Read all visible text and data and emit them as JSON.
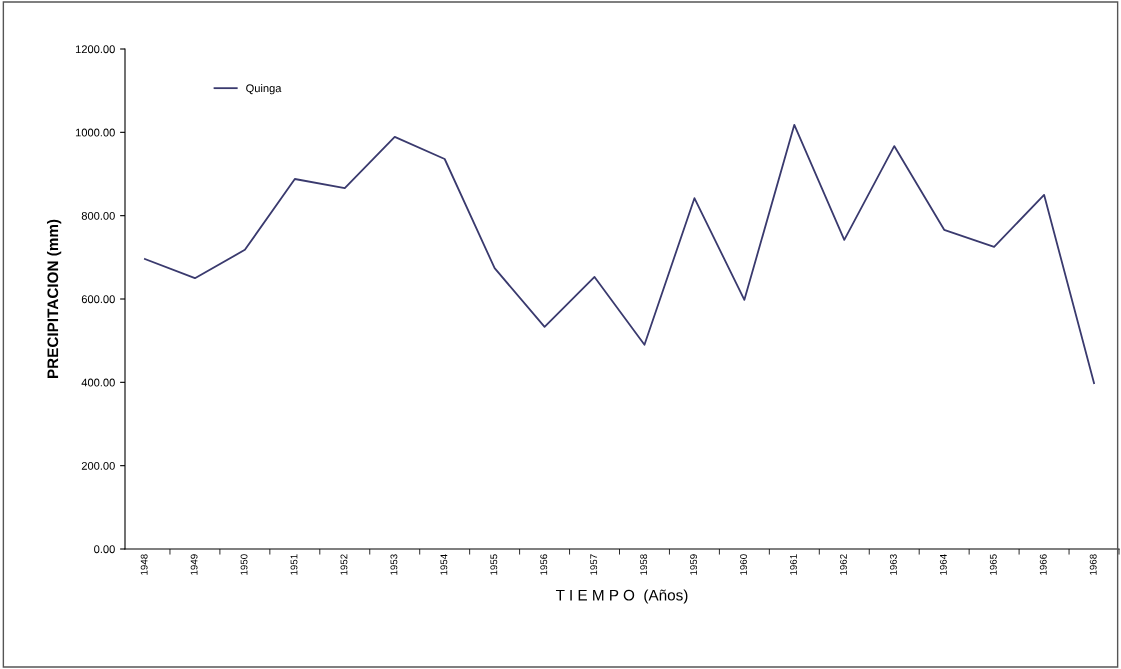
{
  "chart_data": {
    "type": "line",
    "xlabel": "T I E M P O  (Años)",
    "ylabel": "PRECIPITACION (mm)",
    "categories": [
      "1948",
      "1949",
      "1950",
      "1951",
      "1952",
      "1953",
      "1954",
      "1955",
      "1956",
      "1957",
      "1958",
      "1959",
      "1960",
      "1961",
      "1962",
      "1963",
      "1964",
      "1965",
      "1966",
      "1968"
    ],
    "series": [
      {
        "name": "Quinga",
        "color": "#3a3a6e",
        "values": [
          696,
          650,
          718,
          888,
          866,
          989,
          936,
          674,
          533,
          653,
          490,
          842,
          598,
          1018,
          742,
          967,
          766,
          725,
          850,
          398
        ]
      }
    ],
    "ylim": [
      0,
      1200
    ],
    "yticks": [
      {
        "value": 0,
        "label": "0.00"
      },
      {
        "value": 200,
        "label": "200.00"
      },
      {
        "value": 400,
        "label": "400.00"
      },
      {
        "value": 600,
        "label": "600.00"
      },
      {
        "value": 800,
        "label": "800.00"
      },
      {
        "value": 1000,
        "label": "1000.00"
      },
      {
        "value": 1200,
        "label": "1200.00"
      }
    ],
    "grid": false,
    "legend": "top left",
    "marker": "none",
    "line_style": "solid"
  }
}
